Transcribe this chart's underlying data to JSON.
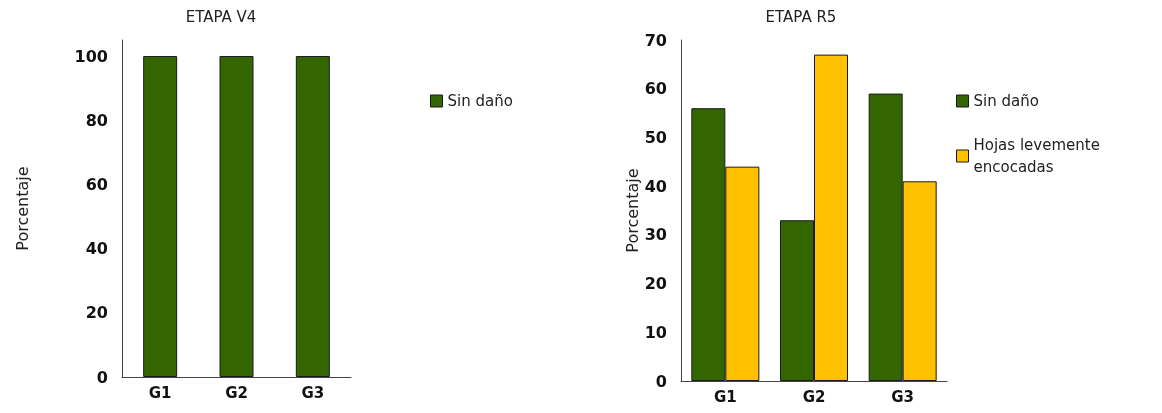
{
  "chart_data": [
    {
      "type": "bar",
      "title": "ETAPA V4",
      "ylabel": "Porcentaje",
      "categories": [
        "G1",
        "G2",
        "G3"
      ],
      "series": [
        {
          "name": "Sin daño",
          "color": "#336600",
          "values": [
            100,
            100,
            100
          ]
        }
      ],
      "ylim": [
        0,
        105
      ],
      "yticks": [
        0,
        20,
        40,
        60,
        80,
        100
      ],
      "grid": false,
      "legend": "right"
    },
    {
      "type": "bar",
      "title": "ETAPA R5",
      "ylabel": "Porcentaje",
      "categories": [
        "G1",
        "G2",
        "G3"
      ],
      "series": [
        {
          "name": "Sin daño",
          "color": "#336600",
          "values": [
            56,
            33,
            59
          ]
        },
        {
          "name": "Hojas levemente\nencocadas",
          "color": "#ffc000",
          "values": [
            44,
            67,
            41
          ]
        }
      ],
      "ylim": [
        0,
        70
      ],
      "yticks": [
        0,
        10,
        20,
        30,
        40,
        50,
        60,
        70
      ],
      "grid": false,
      "legend": "right"
    }
  ]
}
